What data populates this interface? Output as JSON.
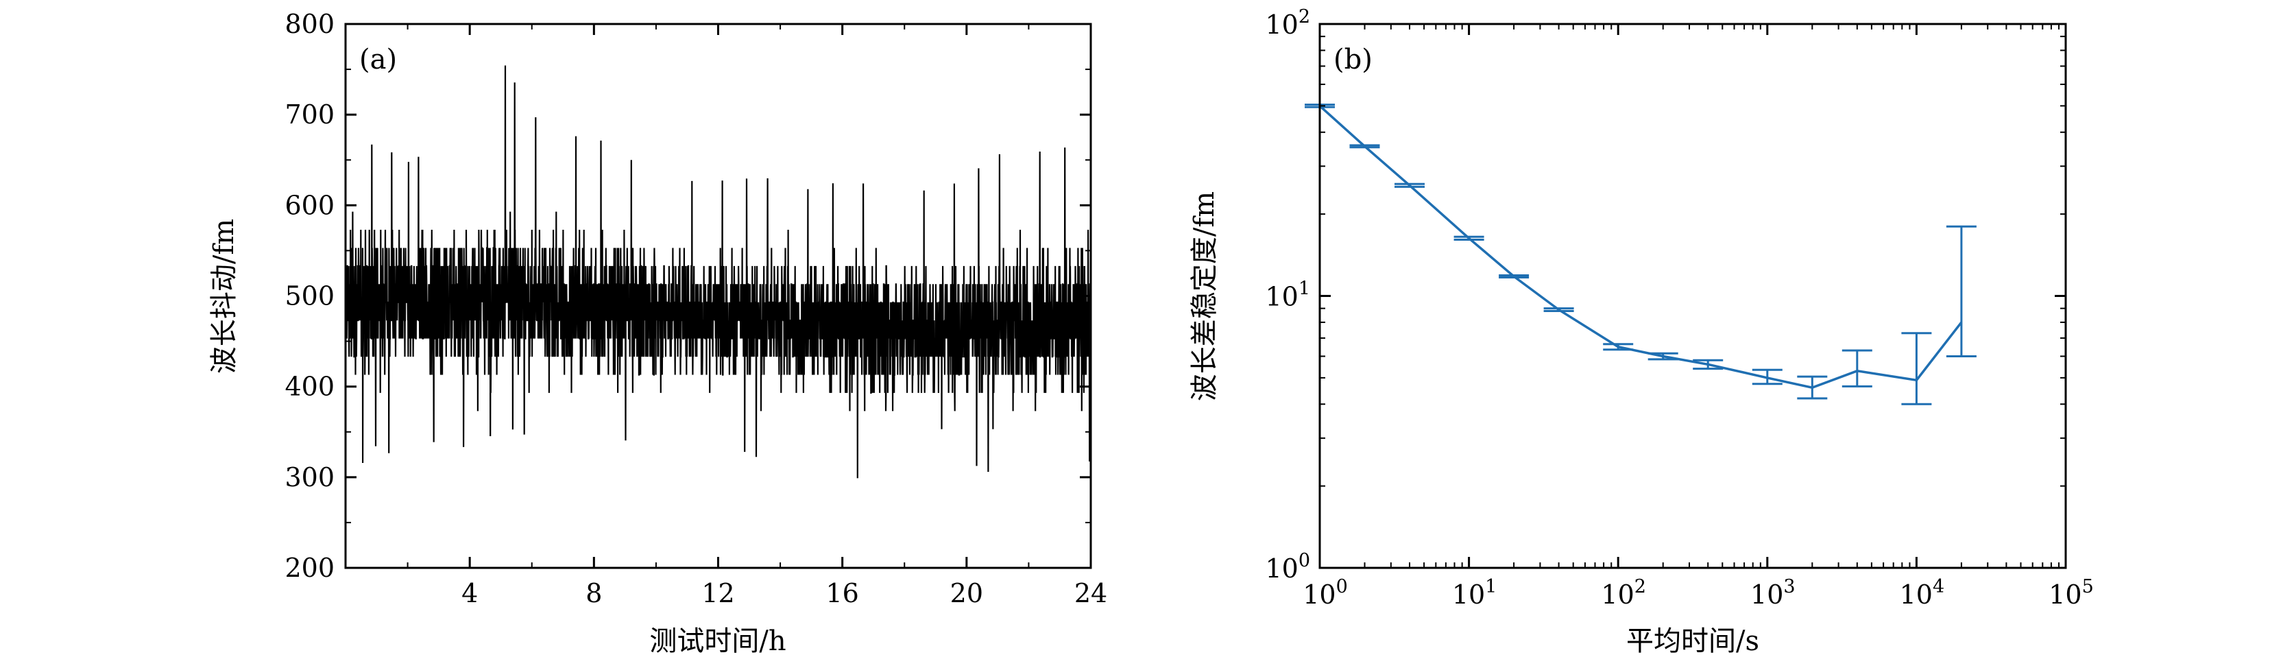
{
  "chart_data": [
    {
      "type": "line",
      "panel_label": "(a)",
      "xlabel": "测试时间/h",
      "ylabel": "波长抖动/fm",
      "xlim": [
        0,
        24
      ],
      "ylim": [
        200,
        800
      ],
      "xticks": [
        4,
        8,
        12,
        16,
        20,
        24
      ],
      "xtick_labels": [
        "4",
        "8",
        "12",
        "16",
        "20",
        "24"
      ],
      "yticks": [
        200,
        300,
        400,
        500,
        600,
        700,
        800
      ],
      "ytick_labels": [
        "200",
        "300",
        "400",
        "500",
        "600",
        "700",
        "800"
      ],
      "grid": false,
      "series": [
        {
          "color": "#000000",
          "description_points": {
            "x": [
              0,
              2,
              4,
              5,
              6,
              8,
              10,
              12,
              14,
              16,
              18,
              19,
              20,
              22,
              24
            ],
            "y_mean": [
              500,
              500,
              500,
              510,
              500,
              495,
              490,
              485,
              480,
              475,
              470,
              470,
              470,
              475,
              480
            ],
            "y_max": [
              690,
              660,
              700,
              775,
              700,
              690,
              650,
              640,
              630,
              640,
              640,
              630,
              640,
              675,
              680
            ],
            "y_min": [
              310,
              330,
              320,
              340,
              330,
              315,
              330,
              320,
              300,
              275,
              300,
              255,
              300,
              275,
              300
            ]
          }
        }
      ]
    },
    {
      "type": "line",
      "panel_label": "(b)",
      "xlabel": "平均时间/s",
      "ylabel": "波长差稳定度/fm",
      "xscale": "log",
      "yscale": "log",
      "xlim": [
        1,
        100000
      ],
      "ylim": [
        1,
        100
      ],
      "xticks": [
        1,
        10,
        100,
        1000,
        10000,
        100000
      ],
      "xtick_labels": [
        {
          "base": "10",
          "exp": "0"
        },
        {
          "base": "10",
          "exp": "1"
        },
        {
          "base": "10",
          "exp": "2"
        },
        {
          "base": "10",
          "exp": "3"
        },
        {
          "base": "10",
          "exp": "4"
        },
        {
          "base": "10",
          "exp": "5"
        }
      ],
      "yticks": [
        1,
        10,
        100
      ],
      "ytick_labels": [
        {
          "base": "10",
          "exp": "0"
        },
        {
          "base": "10",
          "exp": "1"
        },
        {
          "base": "10",
          "exp": "2"
        }
      ],
      "grid": false,
      "series": [
        {
          "color": "#1f6fb2",
          "x": [
            1,
            2,
            4,
            10,
            20,
            40,
            100,
            200,
            400,
            1000,
            2000,
            4000,
            10000,
            20000
          ],
          "y": [
            50,
            35.5,
            25.5,
            16.3,
            11.8,
            8.9,
            6.5,
            6.0,
            5.6,
            5.0,
            4.6,
            5.3,
            4.9,
            8.0
          ],
          "yerr_low": [
            49.5,
            35.2,
            25.2,
            16.1,
            11.7,
            8.8,
            6.35,
            5.85,
            5.4,
            4.75,
            4.2,
            4.65,
            4.0,
            6.0
          ],
          "yerr_high": [
            50.5,
            35.8,
            25.8,
            16.5,
            11.9,
            9.0,
            6.65,
            6.15,
            5.8,
            5.35,
            5.05,
            6.3,
            7.3,
            18.0
          ]
        }
      ]
    }
  ]
}
